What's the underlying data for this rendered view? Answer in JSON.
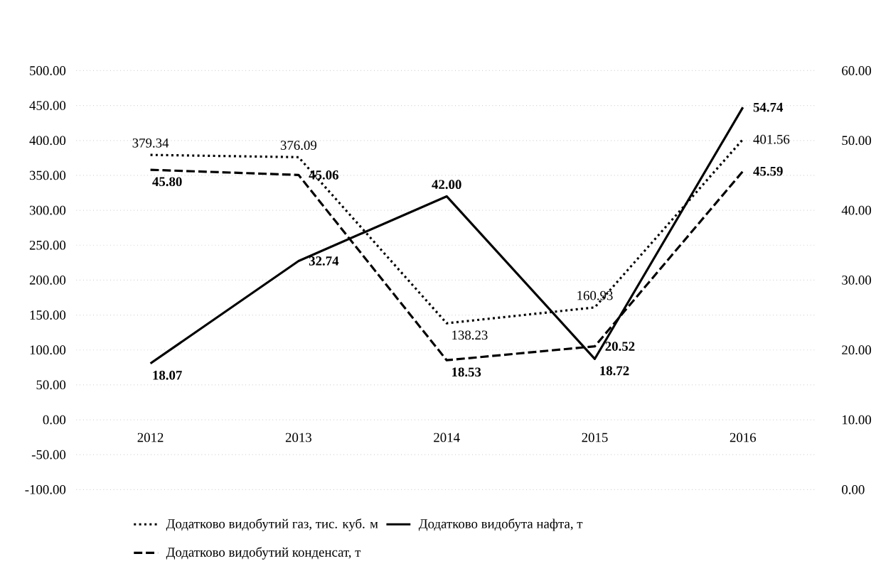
{
  "chart_data": {
    "type": "line",
    "categories": [
      "2012",
      "2013",
      "2014",
      "2015",
      "2016"
    ],
    "series": [
      {
        "name": "Додатково видобутий газ, тис. куб. м",
        "color": "#000000",
        "line_style": "dotted",
        "axis": "y",
        "values": [
          379.34,
          376.09,
          138.23,
          160.93,
          401.56
        ],
        "value_labels": [
          "379.34",
          "376.09",
          "138.23",
          "160.93",
          "401.56"
        ]
      },
      {
        "name": "Додатково видобута нафта, т",
        "color": "#000000",
        "line_style": "solid",
        "axis": "y2",
        "values": [
          18.07,
          32.74,
          42.0,
          18.72,
          54.74
        ],
        "value_labels": [
          "18.07",
          "32.74",
          "42.00",
          "18.72",
          "54.74"
        ]
      },
      {
        "name": "Додатково видобутий конденсат, т",
        "color": "#000000",
        "line_style": "dashed",
        "axis": "y2",
        "values": [
          45.8,
          45.06,
          18.53,
          20.52,
          45.59
        ],
        "value_labels": [
          "45.80",
          "45.06",
          "18.53",
          "20.52",
          "45.59"
        ]
      }
    ],
    "ylim": [
      -100,
      500
    ],
    "yticks": [
      {
        "value": -100,
        "label": "-100.00"
      },
      {
        "value": -50,
        "label": "-50.00"
      },
      {
        "value": 0,
        "label": "0.00"
      },
      {
        "value": 50,
        "label": "50.00"
      },
      {
        "value": 100,
        "label": "100.00"
      },
      {
        "value": 150,
        "label": "150.00"
      },
      {
        "value": 200,
        "label": "200.00"
      },
      {
        "value": 250,
        "label": "250.00"
      },
      {
        "value": 300,
        "label": "300.00"
      },
      {
        "value": 350,
        "label": "350.00"
      },
      {
        "value": 400,
        "label": "400.00"
      },
      {
        "value": 450,
        "label": "450.00"
      },
      {
        "value": 500,
        "label": "500.00"
      }
    ],
    "y2lim": [
      0,
      60
    ],
    "y2ticks": [
      {
        "value": 0,
        "label": "0.00"
      },
      {
        "value": 10,
        "label": "10.00"
      },
      {
        "value": 20,
        "label": "20.00"
      },
      {
        "value": 30,
        "label": "30.00"
      },
      {
        "value": 40,
        "label": "40.00"
      },
      {
        "value": 50,
        "label": "50.00"
      },
      {
        "value": 60,
        "label": "60.00"
      }
    ],
    "grid": "y",
    "legend": "bottom",
    "marker": "none"
  }
}
